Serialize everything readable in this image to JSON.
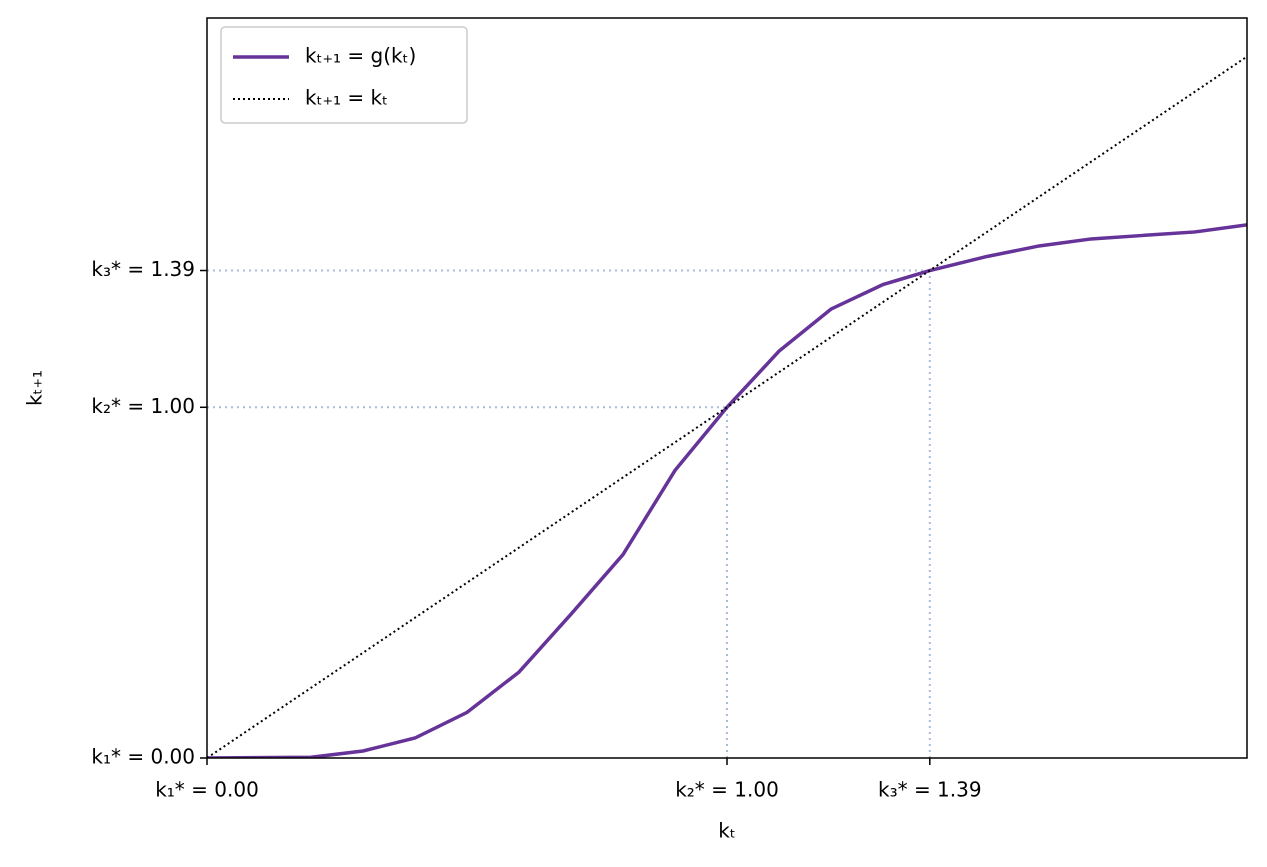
{
  "chart_data": {
    "type": "line",
    "xlabel": "kₜ",
    "ylabel": "kₜ₊₁",
    "xlim": [
      0,
      2.0
    ],
    "ylim": [
      0,
      2.11
    ],
    "xticks": [
      {
        "value": 0,
        "label": "k₁* = 0.00"
      },
      {
        "value": 1.0,
        "label": "k₂* = 1.00"
      },
      {
        "value": 1.39,
        "label": "k₃* = 1.39"
      }
    ],
    "yticks": [
      {
        "value": 0,
        "label": "k₁* = 0.00"
      },
      {
        "value": 1.0,
        "label": "k₂* = 1.00"
      },
      {
        "value": 1.39,
        "label": "k₃* = 1.39"
      }
    ],
    "guides": true,
    "guide_color": "#a9bcdb",
    "legend": "upper left",
    "series": [
      {
        "name": "kₜ₊₁ = g(kₜ)",
        "color": "#663399",
        "linestyle": "solid",
        "x": [
          0,
          0.2,
          0.3,
          0.4,
          0.5,
          0.6,
          0.7,
          0.8,
          0.9,
          1.0,
          1.1,
          1.2,
          1.3,
          1.39,
          1.5,
          1.6,
          1.7,
          1.8,
          1.9,
          2.0
        ],
        "values": [
          0,
          0.002,
          0.02,
          0.057,
          0.13,
          0.245,
          0.41,
          0.58,
          0.82,
          1.0,
          1.16,
          1.28,
          1.35,
          1.39,
          1.43,
          1.46,
          1.48,
          1.49,
          1.5,
          1.52
        ]
      },
      {
        "name": "kₜ₊₁ = kₜ",
        "color": "#000000",
        "linestyle": "dotted",
        "x": [
          0,
          2.0
        ],
        "values": [
          0,
          2.0
        ]
      }
    ]
  }
}
